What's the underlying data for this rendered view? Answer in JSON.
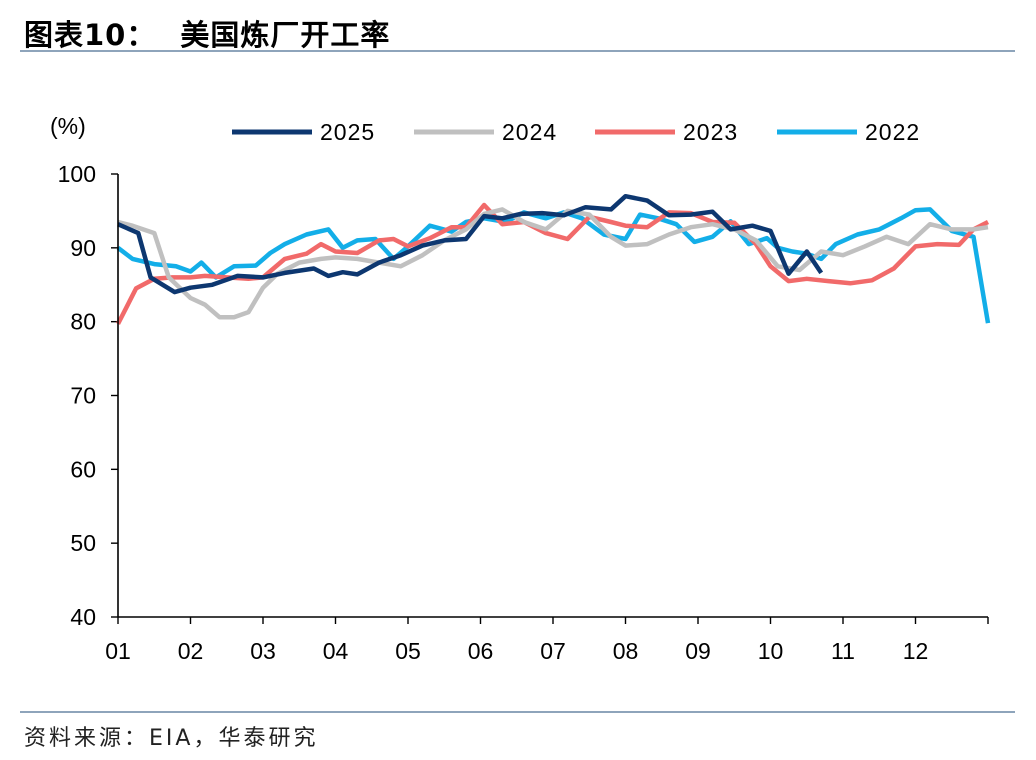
{
  "figure": {
    "title_prefix": "图表10：",
    "title_name": "美国炼厂开工率",
    "source": "资料来源：EIA，华泰研究"
  },
  "chart_data": {
    "type": "line",
    "title": "美国炼厂开工率",
    "ylabel": "(%)",
    "xlabel": "",
    "ylim": [
      40,
      100
    ],
    "yticks": [
      40,
      50,
      60,
      70,
      80,
      90,
      100
    ],
    "xlim": [
      1,
      13
    ],
    "x_tick_labels": [
      "01",
      "02",
      "03",
      "04",
      "05",
      "06",
      "07",
      "08",
      "09",
      "10",
      "11",
      "12"
    ],
    "legend_position": "top",
    "grid": false,
    "series": [
      {
        "name": "2025",
        "color": "#0d3770",
        "x": [
          1.0,
          1.28,
          1.45,
          1.78,
          2.0,
          2.3,
          2.65,
          3.0,
          3.3,
          3.7,
          3.9,
          4.1,
          4.3,
          4.6,
          4.9,
          5.2,
          5.5,
          5.8,
          6.05,
          6.3,
          6.55,
          6.85,
          7.15,
          7.45,
          7.8,
          8.0,
          8.3,
          8.6,
          8.9,
          9.2,
          9.45,
          9.75,
          10.0,
          10.25,
          10.5,
          10.7
        ],
        "y": [
          93.2,
          92.0,
          86.0,
          84.0,
          84.6,
          85.0,
          86.2,
          86.0,
          86.6,
          87.2,
          86.2,
          86.7,
          86.4,
          88.0,
          89.0,
          90.3,
          91.0,
          91.2,
          94.3,
          94.0,
          94.6,
          94.7,
          94.4,
          95.5,
          95.2,
          97.0,
          96.4,
          94.4,
          94.5,
          94.9,
          92.5,
          93.0,
          92.3,
          86.5,
          89.5,
          86.6
        ]
      },
      {
        "name": "2024",
        "color": "#c0c0c0",
        "x": [
          1.0,
          1.2,
          1.5,
          1.7,
          2.0,
          2.2,
          2.4,
          2.6,
          2.8,
          3.0,
          3.2,
          3.5,
          3.8,
          4.0,
          4.3,
          4.6,
          4.9,
          5.2,
          5.5,
          5.8,
          6.05,
          6.3,
          6.6,
          6.9,
          7.2,
          7.5,
          7.8,
          8.0,
          8.3,
          8.6,
          8.9,
          9.2,
          9.5,
          9.8,
          10.1,
          10.4,
          10.7,
          11.0,
          11.3,
          11.6,
          11.9,
          12.2,
          12.5,
          12.8,
          13.0
        ],
        "y": [
          93.5,
          93.0,
          92.0,
          86.0,
          83.2,
          82.3,
          80.6,
          80.6,
          81.3,
          84.6,
          86.5,
          88.0,
          88.5,
          88.7,
          88.5,
          88.0,
          87.5,
          89.0,
          91.0,
          92.5,
          94.6,
          95.2,
          93.5,
          92.5,
          95.0,
          94.5,
          91.5,
          90.3,
          90.5,
          91.8,
          92.8,
          93.2,
          92.5,
          91.0,
          87.5,
          87.0,
          89.5,
          89.0,
          90.2,
          91.5,
          90.5,
          93.2,
          92.5,
          92.5,
          92.8
        ]
      },
      {
        "name": "2023",
        "color": "#f16a6a",
        "x": [
          1.0,
          1.25,
          1.5,
          1.75,
          2.0,
          2.2,
          2.5,
          2.8,
          3.0,
          3.3,
          3.6,
          3.8,
          4.0,
          4.3,
          4.6,
          4.8,
          5.0,
          5.3,
          5.6,
          5.8,
          6.05,
          6.3,
          6.6,
          6.9,
          7.2,
          7.5,
          7.8,
          8.0,
          8.3,
          8.6,
          8.9,
          9.2,
          9.5,
          9.8,
          10.0,
          10.25,
          10.5,
          10.8,
          11.1,
          11.4,
          11.7,
          12.0,
          12.3,
          12.6,
          12.8,
          13.0
        ],
        "y": [
          79.7,
          84.5,
          85.8,
          86.0,
          86.0,
          86.2,
          86.0,
          85.8,
          86.0,
          88.5,
          89.2,
          90.5,
          89.5,
          89.3,
          91.0,
          91.2,
          90.2,
          91.3,
          92.8,
          92.8,
          95.8,
          93.2,
          93.5,
          92.0,
          91.2,
          94.2,
          93.5,
          93.0,
          92.8,
          94.8,
          94.7,
          93.5,
          93.4,
          90.5,
          87.5,
          85.5,
          85.8,
          85.5,
          85.2,
          85.6,
          87.2,
          90.2,
          90.5,
          90.4,
          92.5,
          93.5
        ]
      },
      {
        "name": "2022",
        "color": "#13aee8",
        "x": [
          1.0,
          1.2,
          1.5,
          1.8,
          2.0,
          2.15,
          2.35,
          2.6,
          2.9,
          3.1,
          3.3,
          3.6,
          3.9,
          4.1,
          4.3,
          4.55,
          4.8,
          5.0,
          5.3,
          5.6,
          5.8,
          6.05,
          6.35,
          6.6,
          6.9,
          7.15,
          7.4,
          7.7,
          8.0,
          8.2,
          8.45,
          8.7,
          8.95,
          9.2,
          9.45,
          9.7,
          9.95,
          10.1,
          10.3,
          10.5,
          10.7,
          10.9,
          11.2,
          11.5,
          11.8,
          12.0,
          12.2,
          12.5,
          12.8,
          13.0
        ],
        "y": [
          90.0,
          88.5,
          87.8,
          87.5,
          86.8,
          88.0,
          86.0,
          87.5,
          87.6,
          89.3,
          90.5,
          91.8,
          92.5,
          90.0,
          91.0,
          91.2,
          88.5,
          90.2,
          93.0,
          92.2,
          93.5,
          94.0,
          93.5,
          94.8,
          94.0,
          94.8,
          94.0,
          91.8,
          91.2,
          94.5,
          94.0,
          93.2,
          90.8,
          91.5,
          93.6,
          90.5,
          91.3,
          90.0,
          89.5,
          89.2,
          88.5,
          90.5,
          91.8,
          92.5,
          94.0,
          95.1,
          95.2,
          92.3,
          91.5,
          79.8
        ]
      }
    ]
  }
}
